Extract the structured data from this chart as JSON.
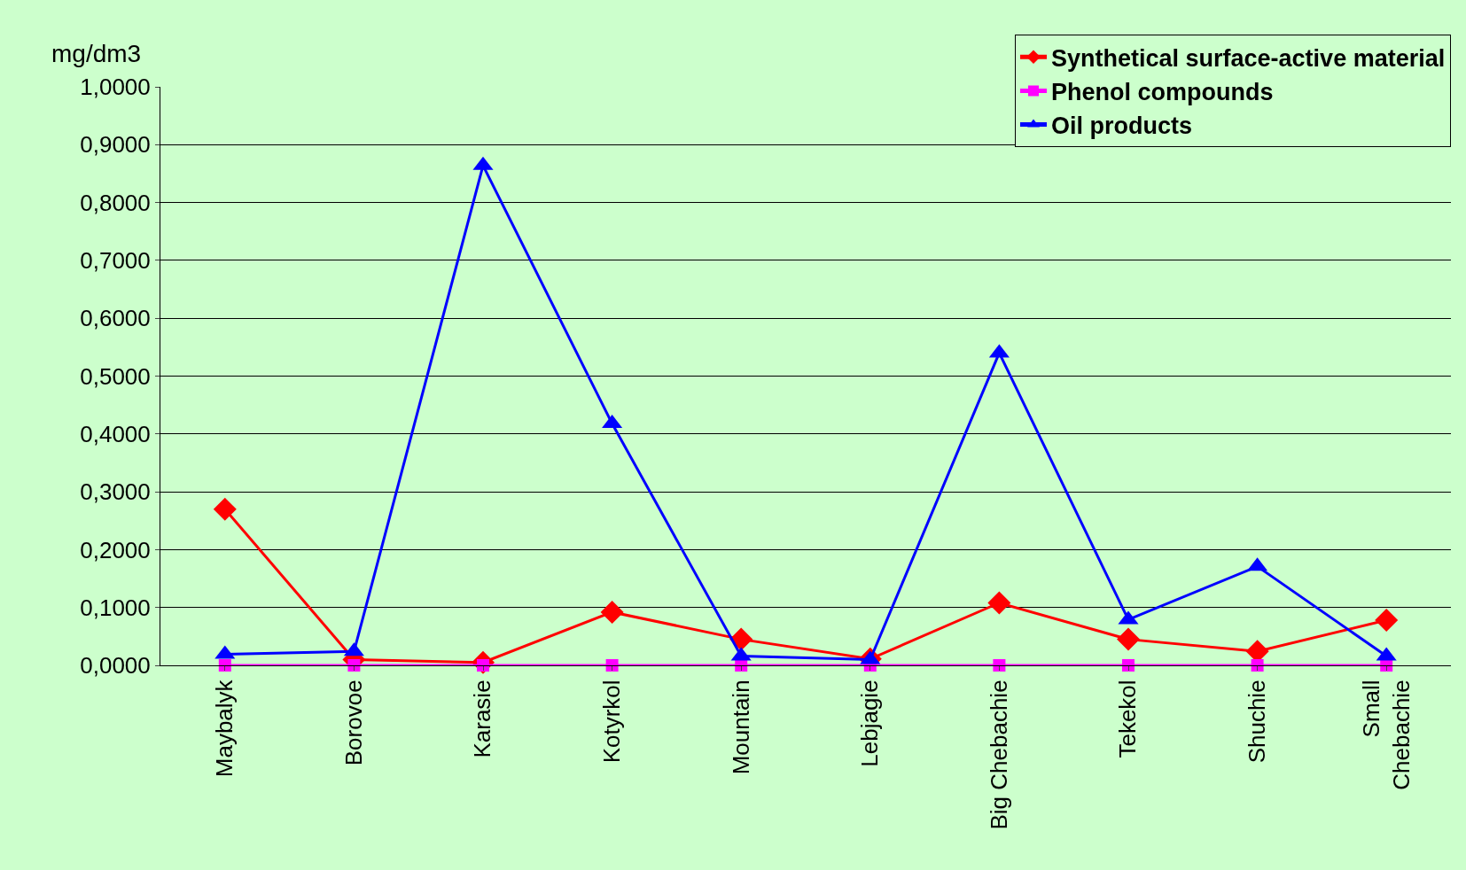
{
  "chart_data": {
    "type": "line",
    "ylabel": "mg/dm3",
    "categories": [
      "Maybalyk",
      "Borovoe",
      "Karasie",
      "Kotyrkol",
      "Mountain",
      "Lebjagie",
      "Big Chebachie",
      "Tekekol",
      "Shuchie",
      "Small\nChebachie"
    ],
    "series": [
      {
        "name": "Synthetical surface-active material",
        "color": "#ff0000",
        "marker": "diamond",
        "values": [
          0.27,
          0.01,
          0.005,
          0.092,
          0.045,
          0.011,
          0.108,
          0.045,
          0.024,
          0.078
        ]
      },
      {
        "name": "Phenol compounds",
        "color": "#ff00ff",
        "marker": "square",
        "values": [
          0,
          0,
          0,
          0,
          0,
          0,
          0,
          0,
          0,
          0
        ]
      },
      {
        "name": "Oil products",
        "color": "#0000ff",
        "marker": "triangle",
        "values": [
          0.019,
          0.024,
          0.864,
          0.418,
          0.016,
          0.01,
          0.54,
          0.079,
          0.171,
          0.016
        ]
      }
    ],
    "ylim": [
      0,
      1
    ],
    "yticks": [
      {
        "value": 0,
        "label": "0,0000"
      },
      {
        "value": 0.1,
        "label": "0,1000"
      },
      {
        "value": 0.2,
        "label": "0,2000"
      },
      {
        "value": 0.3,
        "label": "0,3000"
      },
      {
        "value": 0.4,
        "label": "0,4000"
      },
      {
        "value": 0.5,
        "label": "0,5000"
      },
      {
        "value": 0.6,
        "label": "0,6000"
      },
      {
        "value": 0.7,
        "label": "0,7000"
      },
      {
        "value": 0.8,
        "label": "0,8000"
      },
      {
        "value": 0.9,
        "label": "0,9000"
      },
      {
        "value": 1,
        "label": "1,0000"
      }
    ],
    "grid": "y",
    "legend": "top right",
    "line_style": "solid"
  }
}
